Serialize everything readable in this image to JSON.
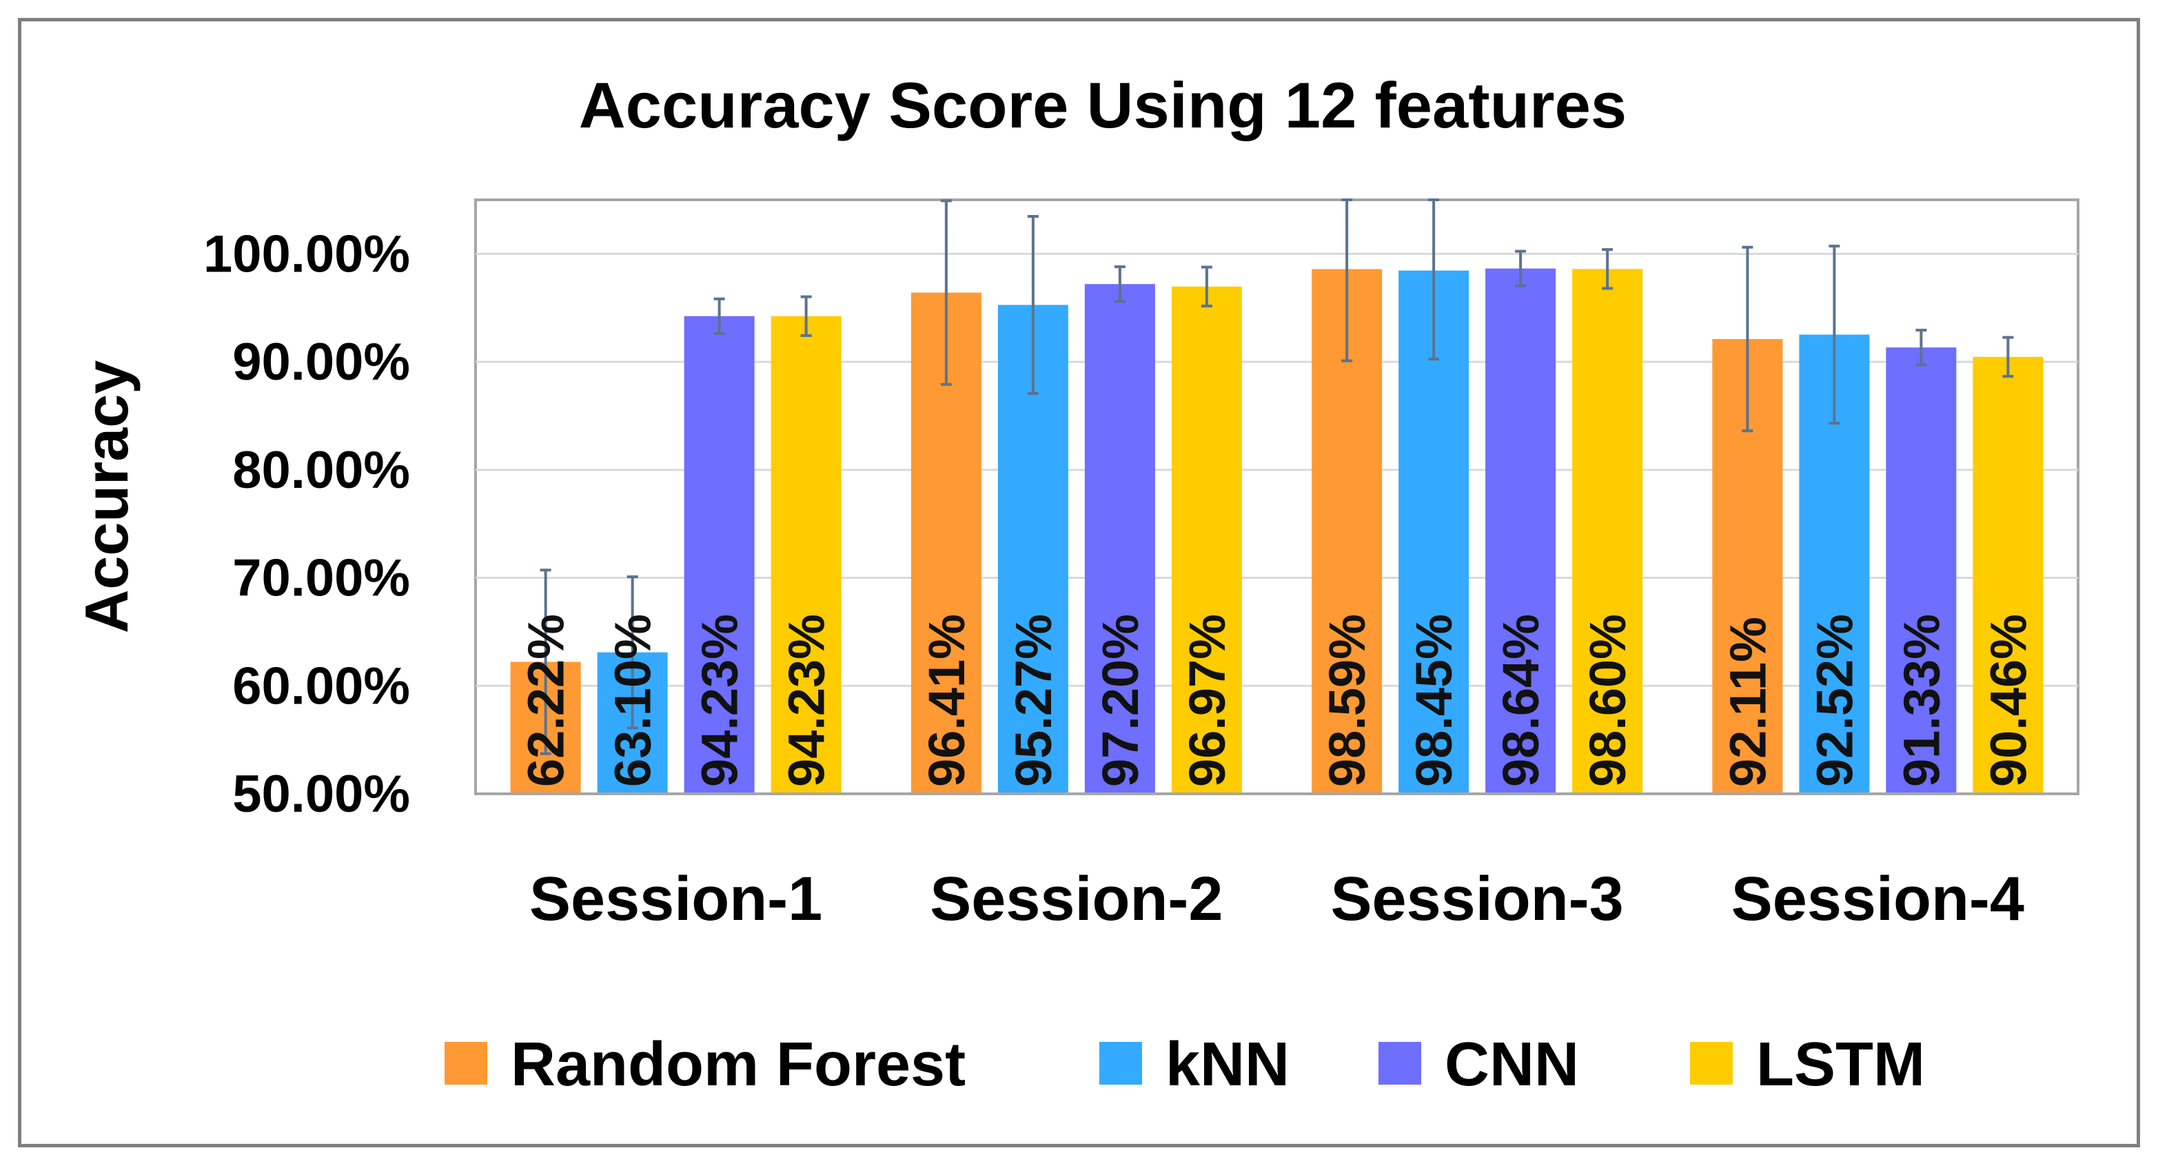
{
  "chart_data": {
    "type": "bar",
    "title": "Accuracy Score Using 12 features",
    "xlabel": "",
    "ylabel": "Accuracy",
    "categories": [
      "Session-1",
      "Session-2",
      "Session-3",
      "Session-4"
    ],
    "ylim": [
      0.5,
      1.0
    ],
    "yticks": [
      0.5,
      0.6,
      0.7,
      0.8,
      0.9,
      1.0
    ],
    "ytick_labels": [
      "50.00%",
      "60.00%",
      "70.00%",
      "80.00%",
      "90.00%",
      "100.00%"
    ],
    "grid": true,
    "legend_position": "bottom",
    "series": [
      {
        "name": "Random Forest",
        "color": "#FF9933",
        "values": [
          0.6222,
          0.9641,
          0.9859,
          0.9211
        ],
        "labels": [
          "62.22%",
          "96.41%",
          "98.59%",
          "92.11%"
        ],
        "error": [
          0.085,
          0.085,
          0.085,
          0.085
        ]
      },
      {
        "name": "kNN",
        "color": "#33AAFF",
        "values": [
          0.631,
          0.9527,
          0.9845,
          0.9252
        ],
        "labels": [
          "63.10%",
          "95.27%",
          "98.45%",
          "92.52%"
        ],
        "error": [
          0.07,
          0.082,
          0.082,
          0.082
        ]
      },
      {
        "name": "CNN",
        "color": "#6E6EFF",
        "values": [
          0.9423,
          0.972,
          0.9864,
          0.9133
        ],
        "labels": [
          "94.23%",
          "97.20%",
          "98.64%",
          "91.33%"
        ],
        "error": [
          0.016,
          0.016,
          0.016,
          0.016
        ]
      },
      {
        "name": "LSTM",
        "color": "#FFCC00",
        "values": [
          0.9423,
          0.9697,
          0.986,
          0.9046
        ],
        "labels": [
          "94.23%",
          "96.97%",
          "98.60%",
          "90.46%"
        ],
        "error": [
          0.018,
          0.018,
          0.018,
          0.018
        ]
      }
    ]
  }
}
